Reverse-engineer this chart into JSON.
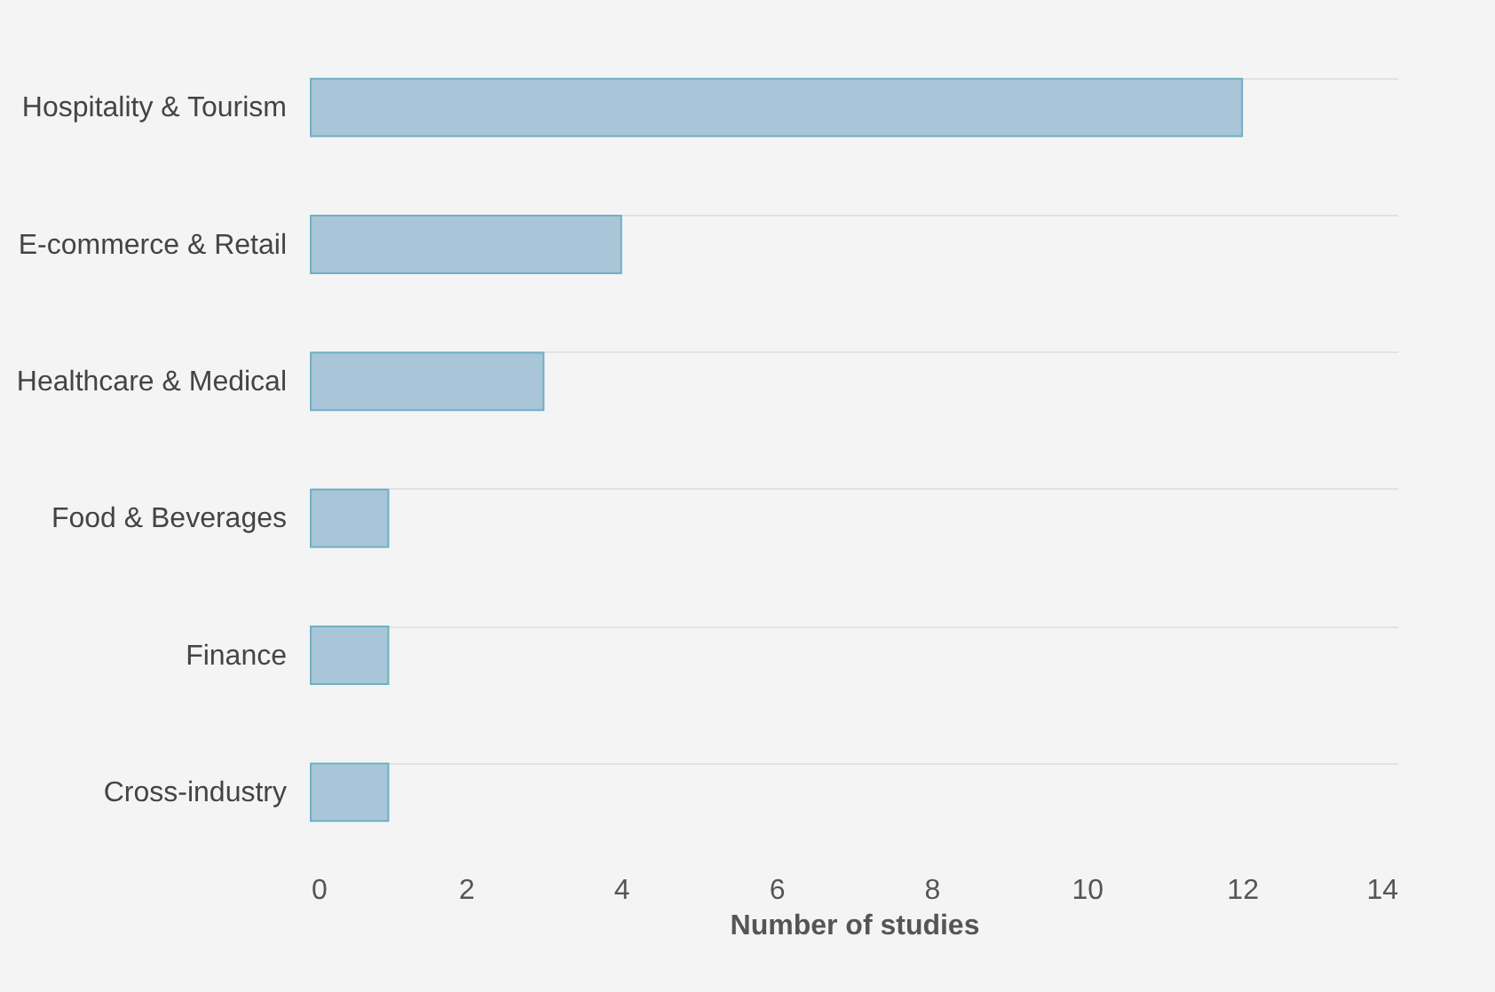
{
  "chart_data": {
    "type": "bar",
    "orientation": "horizontal",
    "xlabel": "Number of studies",
    "categories": [
      "Hospitality & Tourism",
      "E-commerce & Retail",
      "Healthcare & Medical",
      "Food & Beverages",
      "Finance",
      "Cross-industry"
    ],
    "values": [
      12,
      4,
      3,
      1,
      1,
      1
    ],
    "color": "#a9c6d8",
    "xlim": [
      0,
      14
    ],
    "xticks": [
      0,
      2,
      4,
      6,
      8,
      10,
      12,
      14
    ],
    "grid": "y"
  }
}
